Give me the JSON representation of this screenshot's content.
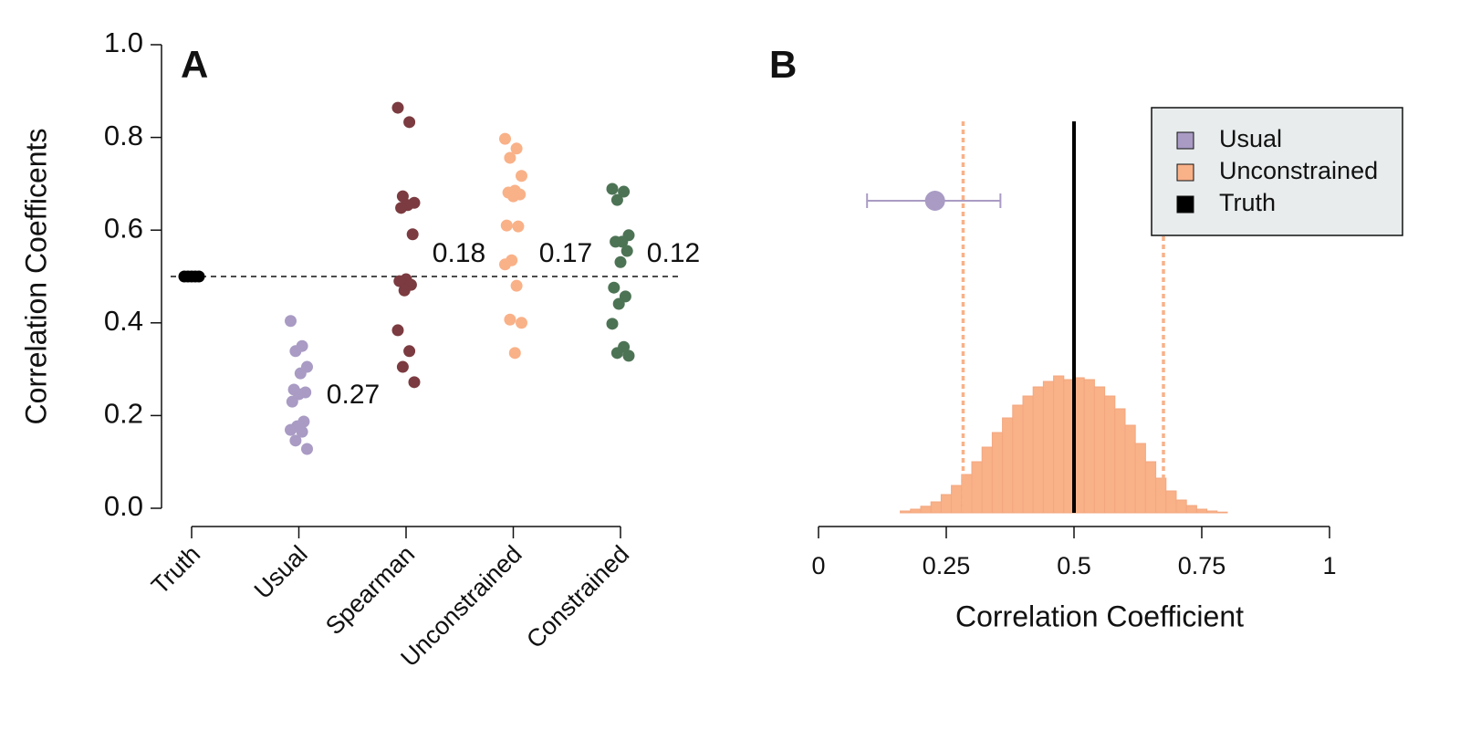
{
  "chart_data": [
    {
      "type": "strip",
      "title": "A",
      "ylabel": "Correlation Coefficents",
      "categories": [
        "Truth",
        "Usual",
        "Spearman",
        "Unconstrained",
        "Constrained"
      ],
      "series": [
        {
          "color": "#000000",
          "values": [
            0.5,
            0.5,
            0.5,
            0.5,
            0.5
          ]
        },
        {
          "color": "#a99bc4",
          "values": [
            0.404,
            0.35,
            0.339,
            0.305,
            0.291,
            0.256,
            0.25,
            0.246,
            0.23,
            0.187,
            0.177,
            0.169,
            0.165,
            0.146,
            0.128
          ]
        },
        {
          "color": "#7b3b40",
          "values": [
            0.864,
            0.833,
            0.673,
            0.659,
            0.654,
            0.648,
            0.591,
            0.494,
            0.49,
            0.482,
            0.47,
            0.384,
            0.339,
            0.305,
            0.272
          ]
        },
        {
          "color": "#f9b188",
          "values": [
            0.797,
            0.776,
            0.756,
            0.717,
            0.685,
            0.681,
            0.677,
            0.673,
            0.61,
            0.608,
            0.535,
            0.526,
            0.48,
            0.407,
            0.4,
            0.335
          ]
        },
        {
          "color": "#4d7355",
          "values": [
            0.689,
            0.683,
            0.665,
            0.589,
            0.575,
            0.575,
            0.555,
            0.531,
            0.476,
            0.457,
            0.441,
            0.398,
            0.348,
            0.335,
            0.329
          ]
        }
      ],
      "annotations": [
        0.27,
        0.18,
        0.17,
        0.12
      ],
      "reference_line": 0.5,
      "ylim": [
        0,
        1
      ],
      "yticks": [
        {
          "value": 0,
          "label": "0.0"
        },
        0.2,
        0.4,
        0.6,
        0.8,
        {
          "value": 1,
          "label": "1.0"
        }
      ]
    },
    {
      "type": "histogram",
      "title": "B",
      "xlabel": "Correlation Coefficient",
      "xlim": [
        0,
        1
      ],
      "xticks": [
        0,
        0.25,
        0.5,
        0.75,
        1
      ],
      "ylim": [
        0,
        4
      ],
      "bins": [
        0.16,
        0.18,
        0.2,
        0.22,
        0.24,
        0.26,
        0.28,
        0.3,
        0.32,
        0.34,
        0.36,
        0.38,
        0.4,
        0.42,
        0.44,
        0.46,
        0.48,
        0.5,
        0.52,
        0.54,
        0.56,
        0.58,
        0.6,
        0.62,
        0.64,
        0.66,
        0.68,
        0.7,
        0.72,
        0.74,
        0.76,
        0.78,
        0.8
      ],
      "counts": [
        0.05,
        0.1,
        0.18,
        0.3,
        0.5,
        0.75,
        1.05,
        1.4,
        1.8,
        2.2,
        2.6,
        2.95,
        3.2,
        3.45,
        3.6,
        3.75,
        3.65,
        3.7,
        3.65,
        3.45,
        3.2,
        2.85,
        2.4,
        1.9,
        1.4,
        0.95,
        0.6,
        0.35,
        0.2,
        0.1,
        0.05,
        0.02
      ],
      "series": [
        {
          "name": "Usual",
          "color": "#a99bc4",
          "estimate": 0.228,
          "interval": [
            0.095,
            0.356
          ]
        },
        {
          "name": "Unconstrained",
          "color": "#f9b188",
          "interval": [
            0.283,
            0.675
          ]
        },
        {
          "name": "Truth",
          "color": "#000000",
          "value": 0.5
        }
      ],
      "legend": "top-right"
    }
  ]
}
